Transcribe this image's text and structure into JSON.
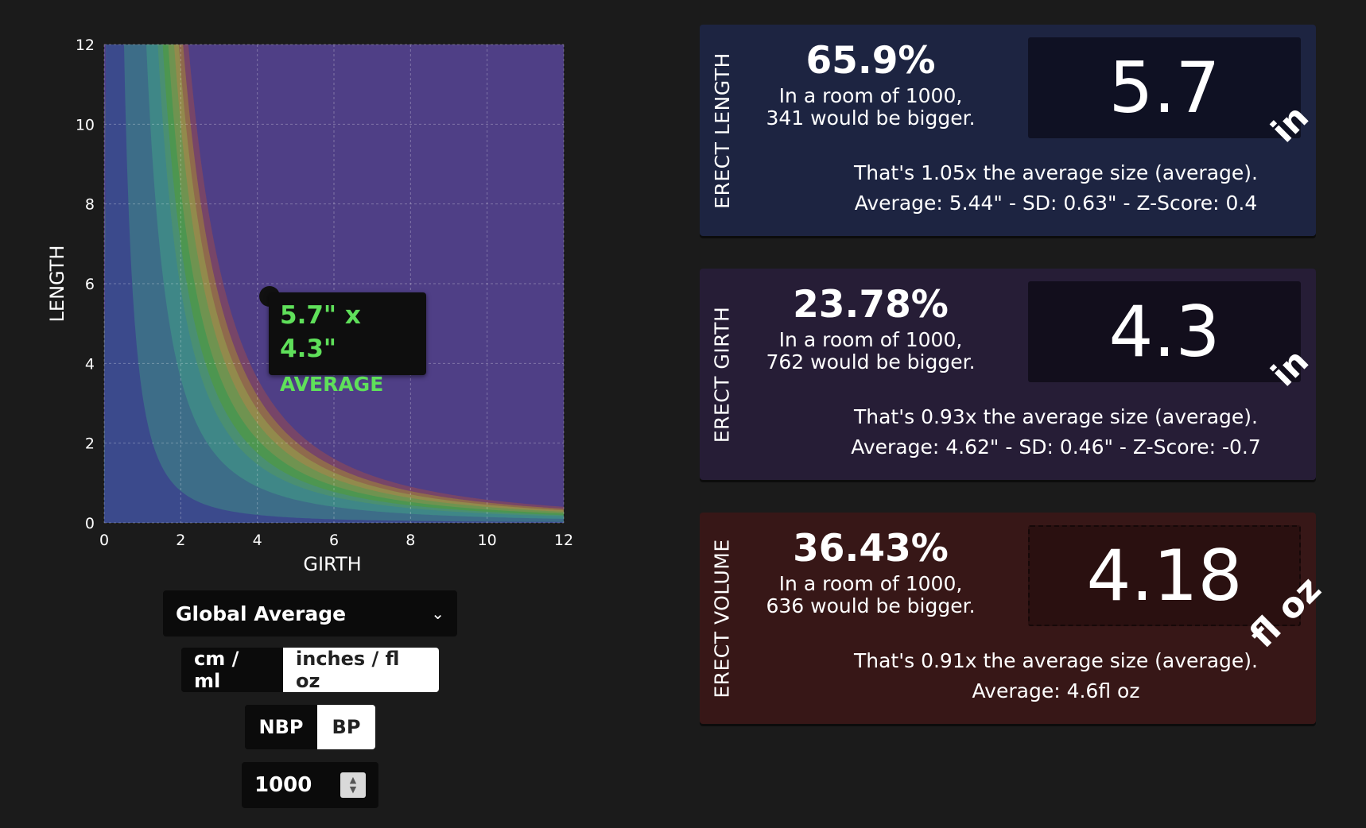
{
  "chart": {
    "ylabel": "LENGTH",
    "xlabel": "GIRTH",
    "tooltip": {
      "size": "5.7\" x 4.3\"",
      "category": "AVERAGE"
    }
  },
  "chart_data": {
    "type": "area",
    "title": "",
    "xlabel": "GIRTH",
    "ylabel": "LENGTH",
    "xlim": [
      0,
      12
    ],
    "ylim": [
      0,
      12
    ],
    "x_ticks": [
      0,
      2,
      4,
      6,
      8,
      10,
      12
    ],
    "y_ticks": [
      0,
      2,
      4,
      6,
      8,
      10,
      12
    ],
    "grid": true,
    "background_color": "#4f3f86",
    "bands": [
      {
        "name": "band-1",
        "k": 3.2,
        "color": "#3b4a8c"
      },
      {
        "name": "band-2",
        "k": 14.5,
        "color": "#3d6d88"
      },
      {
        "name": "band-3",
        "k": 23.5,
        "color": "#3f8787"
      },
      {
        "name": "band-4",
        "k": 28.0,
        "color": "#4a8f72"
      },
      {
        "name": "band-5",
        "k": 33.5,
        "color": "#4d9650"
      },
      {
        "name": "band-6",
        "k": 40.0,
        "color": "#6f9350"
      },
      {
        "name": "band-7",
        "k": 45.5,
        "color": "#928a4c"
      },
      {
        "name": "band-8",
        "k": 51.0,
        "color": "#8f6a4c"
      },
      {
        "name": "band-9",
        "k": 58.0,
        "color": "#774568"
      }
    ],
    "point": {
      "x": 4.3,
      "y": 5.7,
      "label": "5.7\" x 4.3\"",
      "category": "AVERAGE"
    }
  },
  "controls": {
    "dataset": "Global Average",
    "units": {
      "metric": "cm / ml",
      "imperial": "inches / fl oz",
      "selected": "imperial"
    },
    "mode": {
      "nbp": "NBP",
      "bp": "BP",
      "selected": "BP"
    },
    "room_size": "1000"
  },
  "cards": {
    "length": {
      "label": "ERECT LENGTH",
      "percent": "65.9%",
      "room_line1": "In a room of 1000,",
      "room_line2": "341 would be bigger.",
      "value": "5.7",
      "unit": "in",
      "ratio_text": "That's 1.05x the average size (average).",
      "stats_text": "Average: 5.44\" - SD: 0.63\" - Z-Score: 0.4"
    },
    "girth": {
      "label": "ERECT GIRTH",
      "percent": "23.78%",
      "room_line1": "In a room of 1000,",
      "room_line2": "762 would be bigger.",
      "value": "4.3",
      "unit": "in",
      "ratio_text": "That's 0.93x the average size (average).",
      "stats_text": "Average: 4.62\" - SD: 0.46\" - Z-Score: -0.7"
    },
    "volume": {
      "label": "ERECT VOLUME",
      "percent": "36.43%",
      "room_line1": "In a room of 1000,",
      "room_line2": "636 would be bigger.",
      "value": "4.18",
      "unit": "fl oz",
      "ratio_text": "That's 0.91x the average size (average).",
      "stats_text": "Average: 4.6fl oz"
    }
  }
}
